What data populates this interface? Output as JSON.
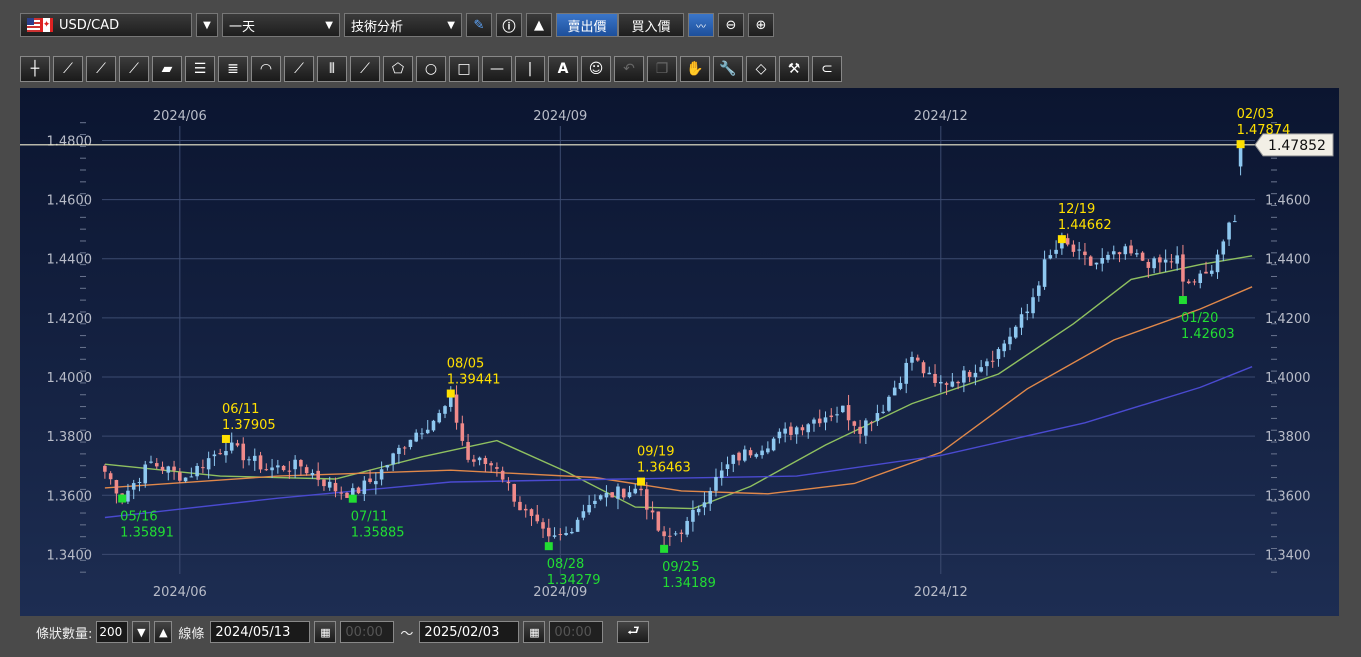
{
  "toolbar": {
    "symbol": "USD/CAD",
    "timeframe": "一天",
    "tech_analysis": "技術分析",
    "sell_price": "賣出價",
    "buy_price": "買入價"
  },
  "bottombar": {
    "bar_count_label": "條狀數量:",
    "bar_count": "200",
    "line_label": "線條",
    "date_from": "2024/05/13",
    "time_from": "00:00",
    "tilde": "～",
    "date_to": "2025/02/03",
    "time_to": "00:00"
  },
  "icons": [
    "draw-pen-icon",
    "info-icon",
    "chart-mountain-icon",
    "indicator-icon",
    "zoom-out-icon",
    "zoom-in-icon",
    "crosshair-icon",
    "line-tool-icons",
    "shape-tool-icons",
    "text-icon",
    "emoji-icon",
    "wrench-icon",
    "eraser-icon",
    "magnet-icon",
    "calendar-icon",
    "return-icon"
  ],
  "colors": {
    "up": "#8ec8f0",
    "down": "#f08a8a",
    "ma_green": "#8fc060",
    "ma_orange": "#e0884a",
    "ma_blue": "#4a4ad0",
    "high_marker": "#ffe000",
    "low_marker": "#22dd33",
    "price_line": "#f0ecd0",
    "background": "#13204a"
  },
  "chart_data": {
    "type": "candlestick",
    "ylim": [
      1.33,
      1.493
    ],
    "y_ticks": [
      "1.3400",
      "1.3600",
      "1.3800",
      "1.4000",
      "1.4200",
      "1.4400",
      "1.4600",
      "1.4800"
    ],
    "x_labels": [
      {
        "label": "2024/06",
        "index": 13
      },
      {
        "label": "2024/09",
        "index": 79
      },
      {
        "label": "2024/12",
        "index": 145
      }
    ],
    "current_price": "1.47852",
    "annotations": [
      {
        "kind": "low",
        "date": "05/16",
        "value": "1.35891",
        "index": 3,
        "price": 1.35891
      },
      {
        "kind": "high",
        "date": "06/11",
        "value": "1.37905",
        "index": 21,
        "price": 1.37905
      },
      {
        "kind": "low",
        "date": "07/11",
        "value": "1.35885",
        "index": 43,
        "price": 1.35885
      },
      {
        "kind": "high",
        "date": "08/05",
        "value": "1.39441",
        "index": 60,
        "price": 1.39441
      },
      {
        "kind": "low",
        "date": "08/28",
        "value": "1.34279",
        "index": 77,
        "price": 1.34279
      },
      {
        "kind": "high",
        "date": "09/19",
        "value": "1.36463",
        "index": 93,
        "price": 1.36463
      },
      {
        "kind": "low",
        "date": "09/25",
        "value": "1.34189",
        "index": 97,
        "price": 1.34189
      },
      {
        "kind": "high",
        "date": "12/19",
        "value": "1.44662",
        "index": 166,
        "price": 1.44662
      },
      {
        "kind": "low",
        "date": "01/20",
        "value": "1.42603",
        "index": 187,
        "price": 1.42603
      },
      {
        "kind": "high",
        "date": "02/03",
        "value": "1.47874",
        "index": 197,
        "price": 1.47874
      }
    ],
    "close_anchors": [
      [
        0,
        1.368
      ],
      [
        3,
        1.3595
      ],
      [
        8,
        1.371
      ],
      [
        14,
        1.366
      ],
      [
        21,
        1.377
      ],
      [
        28,
        1.369
      ],
      [
        34,
        1.37
      ],
      [
        40,
        1.362
      ],
      [
        43,
        1.3605
      ],
      [
        47,
        1.366
      ],
      [
        53,
        1.38
      ],
      [
        58,
        1.387
      ],
      [
        60,
        1.392
      ],
      [
        63,
        1.372
      ],
      [
        68,
        1.37
      ],
      [
        72,
        1.356
      ],
      [
        77,
        1.3445
      ],
      [
        80,
        1.347
      ],
      [
        84,
        1.358
      ],
      [
        90,
        1.3615
      ],
      [
        93,
        1.362
      ],
      [
        95,
        1.352
      ],
      [
        97,
        1.3445
      ],
      [
        101,
        1.35
      ],
      [
        105,
        1.363
      ],
      [
        109,
        1.372
      ],
      [
        115,
        1.378
      ],
      [
        122,
        1.385
      ],
      [
        128,
        1.389
      ],
      [
        131,
        1.383
      ],
      [
        135,
        1.39
      ],
      [
        140,
        1.407
      ],
      [
        144,
        1.397
      ],
      [
        149,
        1.4005
      ],
      [
        155,
        1.409
      ],
      [
        160,
        1.422
      ],
      [
        163,
        1.438
      ],
      [
        166,
        1.4455
      ],
      [
        171,
        1.438
      ],
      [
        177,
        1.442
      ],
      [
        182,
        1.438
      ],
      [
        186,
        1.44
      ],
      [
        187,
        1.431
      ],
      [
        191,
        1.434
      ],
      [
        195,
        1.45
      ],
      [
        196,
        1.452
      ],
      [
        197,
        1.4785
      ]
    ],
    "moving_averages": [
      {
        "name": "MA-green",
        "color": "#8fc060",
        "points": [
          [
            0,
            1.3705
          ],
          [
            20,
            1.3665
          ],
          [
            40,
            1.3655
          ],
          [
            55,
            1.373
          ],
          [
            68,
            1.3785
          ],
          [
            80,
            1.368
          ],
          [
            92,
            1.356
          ],
          [
            102,
            1.3555
          ],
          [
            112,
            1.363
          ],
          [
            125,
            1.377
          ],
          [
            140,
            1.391
          ],
          [
            155,
            1.401
          ],
          [
            168,
            1.418
          ],
          [
            178,
            1.433
          ],
          [
            190,
            1.438
          ],
          [
            199,
            1.441
          ]
        ]
      },
      {
        "name": "MA-orange",
        "color": "#e0884a",
        "points": [
          [
            0,
            1.3625
          ],
          [
            30,
            1.3665
          ],
          [
            60,
            1.3685
          ],
          [
            85,
            1.366
          ],
          [
            100,
            1.3615
          ],
          [
            115,
            1.3605
          ],
          [
            130,
            1.364
          ],
          [
            145,
            1.3745
          ],
          [
            160,
            1.396
          ],
          [
            175,
            1.4125
          ],
          [
            190,
            1.423
          ],
          [
            199,
            1.4305
          ]
        ]
      },
      {
        "name": "MA-blue",
        "color": "#4a4ad0",
        "points": [
          [
            0,
            1.3525
          ],
          [
            30,
            1.359
          ],
          [
            60,
            1.3645
          ],
          [
            90,
            1.3655
          ],
          [
            120,
            1.3665
          ],
          [
            145,
            1.3735
          ],
          [
            170,
            1.3845
          ],
          [
            190,
            1.3965
          ],
          [
            199,
            1.4035
          ]
        ]
      }
    ]
  }
}
